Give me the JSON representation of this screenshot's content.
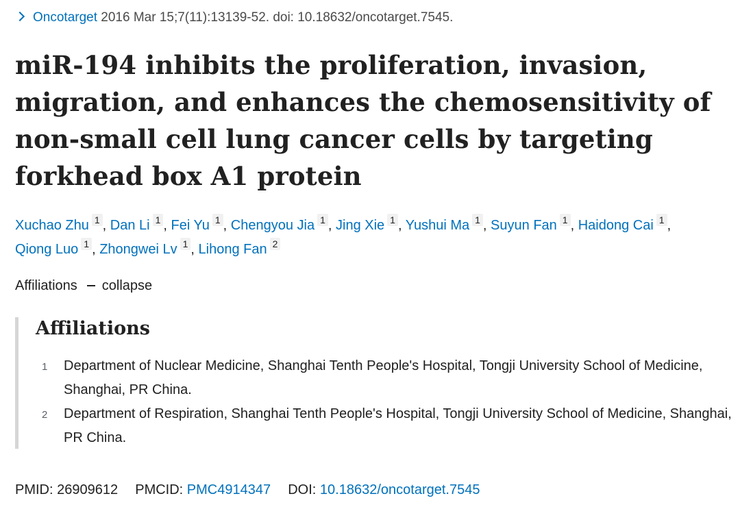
{
  "citation": {
    "journal": "Oncotarget",
    "details": " 2016 Mar 15;7(11):13139-52. doi: 10.18632/oncotarget.7545."
  },
  "title": "miR-194 inhibits the proliferation, invasion, migration, and enhances the chemosensitivity of non-small cell lung cancer cells by targeting forkhead box A1 protein",
  "authors": [
    {
      "name": "Xuchao Zhu",
      "aff": "1"
    },
    {
      "name": "Dan Li",
      "aff": "1"
    },
    {
      "name": "Fei Yu",
      "aff": "1"
    },
    {
      "name": "Chengyou Jia",
      "aff": "1"
    },
    {
      "name": "Jing Xie",
      "aff": "1"
    },
    {
      "name": "Yushui Ma",
      "aff": "1"
    },
    {
      "name": "Suyun Fan",
      "aff": "1"
    },
    {
      "name": "Haidong Cai",
      "aff": "1"
    },
    {
      "name": "Qiong Luo",
      "aff": "1"
    },
    {
      "name": "Zhongwei Lv",
      "aff": "1"
    },
    {
      "name": "Lihong Fan",
      "aff": "2"
    }
  ],
  "affiliations_toggle": {
    "label": "Affiliations",
    "action": "collapse"
  },
  "affiliations": {
    "heading": "Affiliations",
    "items": [
      {
        "num": "1",
        "text": "Department of Nuclear Medicine, Shanghai Tenth People's Hospital, Tongji University School of Medicine, Shanghai, PR China."
      },
      {
        "num": "2",
        "text": "Department of Respiration, Shanghai Tenth People's Hospital, Tongji University School of Medicine, Shanghai, PR China."
      }
    ]
  },
  "identifiers": {
    "pmid_label": "PMID:",
    "pmid": "26909612",
    "pmcid_label": "PMCID:",
    "pmcid": "PMC4914347",
    "doi_label": "DOI:",
    "doi": "10.18632/oncotarget.7545"
  },
  "colors": {
    "link": "#0071bc",
    "text": "#212121",
    "muted": "#4a4a4a",
    "aff_bar": "#d6d6d6"
  }
}
